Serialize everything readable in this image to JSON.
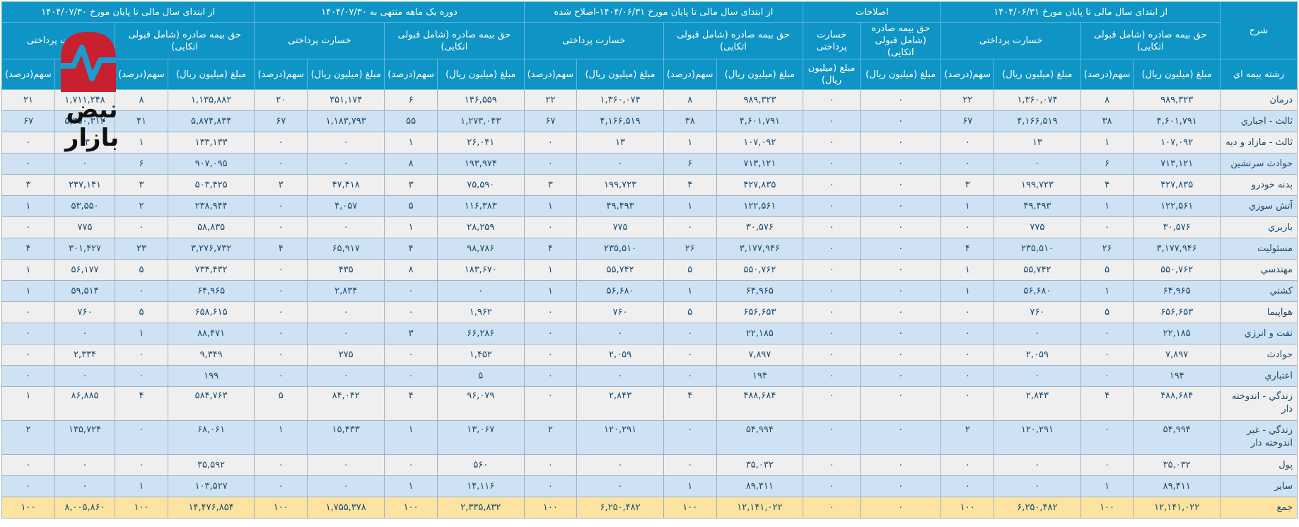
{
  "header": {
    "desc_label": "شرح",
    "line_label": "رشته بيمه اي",
    "groups": [
      {
        "title": "از ابتدای سال مالی تا پایان مورخ ۱۴۰۴/۰۶/۳۱",
        "premium_label": "حق بیمه صادره (شامل قبولی اتکایی)",
        "claims_label": "خسارت پرداختی"
      },
      {
        "title": "اصلاحات",
        "premium_label": "حق بیمه صادره (شامل قبولی اتکایی)",
        "claims_label": "خسارت پرداختی"
      },
      {
        "title": "از ابتدای سال مالی تا پایان مورخ ۱۴۰۴/۰۶/۳۱-اصلاح شده",
        "premium_label": "حق بیمه صادره (شامل قبولی اتکایی)",
        "claims_label": "خسارت پرداختی"
      },
      {
        "title": "دوره یک ماهه منتهی به ۱۴۰۴/۰۷/۳۰",
        "premium_label": "حق بیمه صادره (شامل قبولی اتکایی)",
        "claims_label": "خسارت پرداختی"
      },
      {
        "title": "از ابتدای سال مالی تا پایان مورخ ۱۴۰۴/۰۷/۳۰",
        "premium_label": "حق بیمه صادره (شامل قبولی اتکایی)",
        "claims_label": "خسارت پرداختی"
      }
    ],
    "amount_label": "مبلغ (میلیون ریال)",
    "share_label": "سهم(درصد)"
  },
  "logo": {
    "brand_text": "نبض بازار",
    "brand_color": "#c8202f"
  },
  "colors": {
    "header_bg": "#0f94c6",
    "row_odd": "#efefef",
    "row_even": "#cfe2f3",
    "total_row": "#fde3a0",
    "text": "#1a4a6e"
  },
  "rows": [
    {
      "label": "درمان",
      "cells": [
        "۹۸۹,۳۲۳",
        "۸",
        "۱,۳۶۰,۰۷۴",
        "۲۲",
        "۰",
        "۰",
        "۹۸۹,۳۲۳",
        "۸",
        "۱,۳۶۰,۰۷۴",
        "۲۲",
        "۱۴۶,۵۵۹",
        "۶",
        "۳۵۱,۱۷۴",
        "۲۰",
        "۱,۱۳۵,۸۸۲",
        "۸",
        "۱,۷۱۱,۲۴۸",
        "۲۱"
      ]
    },
    {
      "label": "ثالث - اجباري",
      "cells": [
        "۴,۶۰۱,۷۹۱",
        "۳۸",
        "۴,۱۶۶,۵۱۹",
        "۶۷",
        "۰",
        "۰",
        "۴,۶۰۱,۷۹۱",
        "۳۸",
        "۴,۱۶۶,۵۱۹",
        "۶۷",
        "۱,۲۷۳,۰۴۳",
        "۵۵",
        "۱,۱۸۳,۷۹۳",
        "۶۷",
        "۵,۸۷۴,۸۳۴",
        "۴۱",
        "۵,۳۵۰,۳۱۲",
        "۶۷"
      ]
    },
    {
      "label": "ثالث - مازاد و ديه",
      "cells": [
        "۱۰۷,۰۹۲",
        "۱",
        "۱۳",
        "۰",
        "۰",
        "۰",
        "۱۰۷,۰۹۲",
        "۱",
        "۱۳",
        "۰",
        "۲۶,۰۴۱",
        "۱",
        "۰",
        "۰",
        "۱۳۳,۱۳۳",
        "۱",
        "۱۳",
        "۰"
      ]
    },
    {
      "label": "حوادث سرنشين",
      "cells": [
        "۷۱۳,۱۲۱",
        "۶",
        "۰",
        "۰",
        "۰",
        "۰",
        "۷۱۳,۱۲۱",
        "۶",
        "۰",
        "۰",
        "۱۹۳,۹۷۴",
        "۸",
        "۰",
        "۰",
        "۹۰۷,۰۹۵",
        "۶",
        "۰",
        "۰"
      ]
    },
    {
      "label": "بدنه خودرو",
      "cells": [
        "۴۲۷,۸۳۵",
        "۴",
        "۱۹۹,۷۲۳",
        "۳",
        "۰",
        "۰",
        "۴۲۷,۸۳۵",
        "۴",
        "۱۹۹,۷۲۳",
        "۳",
        "۷۵,۵۹۰",
        "۳",
        "۴۷,۴۱۸",
        "۳",
        "۵۰۳,۴۲۵",
        "۳",
        "۲۴۷,۱۴۱",
        "۳"
      ]
    },
    {
      "label": "آتش سوزي",
      "cells": [
        "۱۲۲,۵۶۱",
        "۱",
        "۴۹,۴۹۳",
        "۱",
        "۰",
        "۰",
        "۱۲۲,۵۶۱",
        "۱",
        "۴۹,۴۹۳",
        "۱",
        "۱۱۶,۳۸۳",
        "۵",
        "۴,۰۵۷",
        "۰",
        "۲۳۸,۹۴۴",
        "۲",
        "۵۳,۵۵۰",
        "۱"
      ]
    },
    {
      "label": "باربري",
      "cells": [
        "۳۰,۵۷۶",
        "۰",
        "۷۷۵",
        "۰",
        "۰",
        "۰",
        "۳۰,۵۷۶",
        "۰",
        "۷۷۵",
        "۰",
        "۲۸,۲۵۹",
        "۱",
        "۰",
        "۰",
        "۵۸,۸۳۵",
        "۰",
        "۷۷۵",
        "۰"
      ]
    },
    {
      "label": "مسئوليت",
      "cells": [
        "۳,۱۷۷,۹۴۶",
        "۲۶",
        "۲۳۵,۵۱۰",
        "۴",
        "۰",
        "۰",
        "۳,۱۷۷,۹۴۶",
        "۲۶",
        "۲۳۵,۵۱۰",
        "۴",
        "۹۸,۷۸۶",
        "۴",
        "۶۵,۹۱۷",
        "۴",
        "۳,۲۷۶,۷۳۲",
        "۲۳",
        "۳۰۱,۴۲۷",
        "۴"
      ]
    },
    {
      "label": "مهندسي",
      "cells": [
        "۵۵۰,۷۶۲",
        "۵",
        "۵۵,۷۴۲",
        "۱",
        "۰",
        "۰",
        "۵۵۰,۷۶۲",
        "۵",
        "۵۵,۷۴۲",
        "۱",
        "۱۸۳,۶۷۰",
        "۸",
        "۴۳۵",
        "۰",
        "۷۳۴,۴۳۲",
        "۵",
        "۵۶,۱۷۷",
        "۱"
      ]
    },
    {
      "label": "كشتي",
      "cells": [
        "۶۴,۹۶۵",
        "۱",
        "۵۶,۶۸۰",
        "۱",
        "۰",
        "۰",
        "۶۴,۹۶۵",
        "۱",
        "۵۶,۶۸۰",
        "۱",
        "۰",
        "۰",
        "۲,۸۳۴",
        "۰",
        "۶۴,۹۶۵",
        "۰",
        "۵۹,۵۱۴",
        "۱"
      ]
    },
    {
      "label": "هواپيما",
      "cells": [
        "۶۵۶,۶۵۳",
        "۵",
        "۷۶۰",
        "۰",
        "۰",
        "۰",
        "۶۵۶,۶۵۳",
        "۵",
        "۷۶۰",
        "۰",
        "۱,۹۶۲",
        "۰",
        "۰",
        "۰",
        "۶۵۸,۶۱۵",
        "۵",
        "۷۶۰",
        "۰"
      ]
    },
    {
      "label": "نفت و انرژي",
      "cells": [
        "۲۲,۱۸۵",
        "۰",
        "۰",
        "۰",
        "۰",
        "۰",
        "۲۲,۱۸۵",
        "۰",
        "۰",
        "۰",
        "۶۶,۲۸۶",
        "۳",
        "۰",
        "۰",
        "۸۸,۴۷۱",
        "۱",
        "۰",
        "۰"
      ]
    },
    {
      "label": "حوادث",
      "cells": [
        "۷,۸۹۷",
        "۰",
        "۲,۰۵۹",
        "۰",
        "۰",
        "۰",
        "۷,۸۹۷",
        "۰",
        "۲,۰۵۹",
        "۰",
        "۱,۴۵۲",
        "۰",
        "۲۷۵",
        "۰",
        "۹,۳۴۹",
        "۰",
        "۲,۳۳۴",
        "۰"
      ]
    },
    {
      "label": "اعتباري",
      "cells": [
        "۱۹۴",
        "۰",
        "۰",
        "۰",
        "۰",
        "۰",
        "۱۹۴",
        "۰",
        "۰",
        "۰",
        "۵",
        "۰",
        "۰",
        "۰",
        "۱۹۹",
        "۰",
        "۰",
        "۰"
      ]
    },
    {
      "label": "زندگي - اندوخته دار",
      "tall": true,
      "cells": [
        "۴۸۸,۶۸۴",
        "۴",
        "۲,۸۴۳",
        "۰",
        "۰",
        "۰",
        "۴۸۸,۶۸۴",
        "۴",
        "۲,۸۴۳",
        "۰",
        "۹۶,۰۷۹",
        "۴",
        "۸۴,۰۴۲",
        "۵",
        "۵۸۴,۷۶۳",
        "۴",
        "۸۶,۸۸۵",
        "۱"
      ]
    },
    {
      "label": "زندگي - غير اندوخته دار",
      "tall": true,
      "cells": [
        "۵۴,۹۹۴",
        "۰",
        "۱۲۰,۲۹۱",
        "۲",
        "۰",
        "۰",
        "۵۴,۹۹۴",
        "۰",
        "۱۲۰,۲۹۱",
        "۲",
        "۱۳,۰۶۷",
        "۱",
        "۱۵,۴۳۳",
        "۱",
        "۶۸,۰۶۱",
        "۰",
        "۱۳۵,۷۲۴",
        "۲"
      ]
    },
    {
      "label": "پول",
      "cells": [
        "۳۵,۰۳۲",
        "۰",
        "۰",
        "۰",
        "۰",
        "۰",
        "۳۵,۰۳۲",
        "۰",
        "۰",
        "۰",
        "۵۶۰",
        "۰",
        "۰",
        "۰",
        "۳۵,۵۹۲",
        "۰",
        "۰",
        "۰"
      ]
    },
    {
      "label": "ساير",
      "cells": [
        "۸۹,۴۱۱",
        "۱",
        "۰",
        "۰",
        "۰",
        "۰",
        "۸۹,۴۱۱",
        "۱",
        "۰",
        "۰",
        "۱۴,۱۱۶",
        "۱",
        "۰",
        "۰",
        "۱۰۳,۵۲۷",
        "۱",
        "۰",
        "۰"
      ]
    }
  ],
  "total": {
    "label": "جمع",
    "cells": [
      "۱۲,۱۴۱,۰۲۲",
      "۱۰۰",
      "۶,۲۵۰,۴۸۲",
      "۱۰۰",
      "۰",
      "۰",
      "۱۲,۱۴۱,۰۲۲",
      "۱۰۰",
      "۶,۲۵۰,۴۸۲",
      "۱۰۰",
      "۲,۳۳۵,۸۳۲",
      "۱۰۰",
      "۱,۷۵۵,۳۷۸",
      "۱۰۰",
      "۱۴,۴۷۶,۸۵۴",
      "۱۰۰",
      "۸,۰۰۵,۸۶۰",
      "۱۰۰"
    ]
  }
}
